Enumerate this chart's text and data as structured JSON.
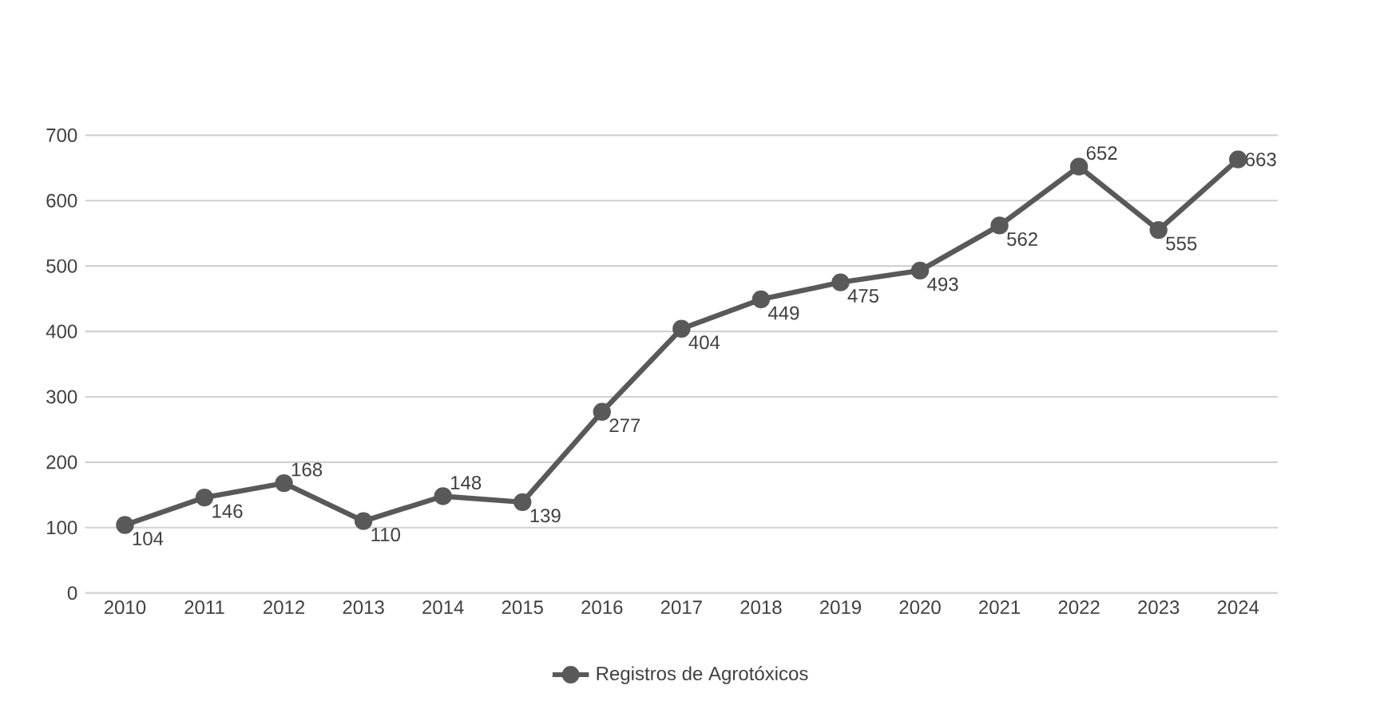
{
  "chart_data": {
    "type": "line",
    "categories": [
      "2010",
      "2011",
      "2012",
      "2013",
      "2014",
      "2015",
      "2016",
      "2017",
      "2018",
      "2019",
      "2020",
      "2021",
      "2022",
      "2023",
      "2024"
    ],
    "series": [
      {
        "name": "Registros de Agrotóxicos",
        "color": "#595959",
        "values": [
          104,
          146,
          168,
          110,
          148,
          139,
          277,
          404,
          449,
          475,
          493,
          562,
          652,
          555,
          663
        ]
      }
    ],
    "ylim": [
      0,
      700
    ],
    "yticks": [
      0,
      100,
      200,
      300,
      400,
      500,
      600,
      700
    ],
    "grid": "y",
    "legend": "bottom",
    "marker": "circle",
    "line_style": "solid",
    "data_labels": true
  }
}
